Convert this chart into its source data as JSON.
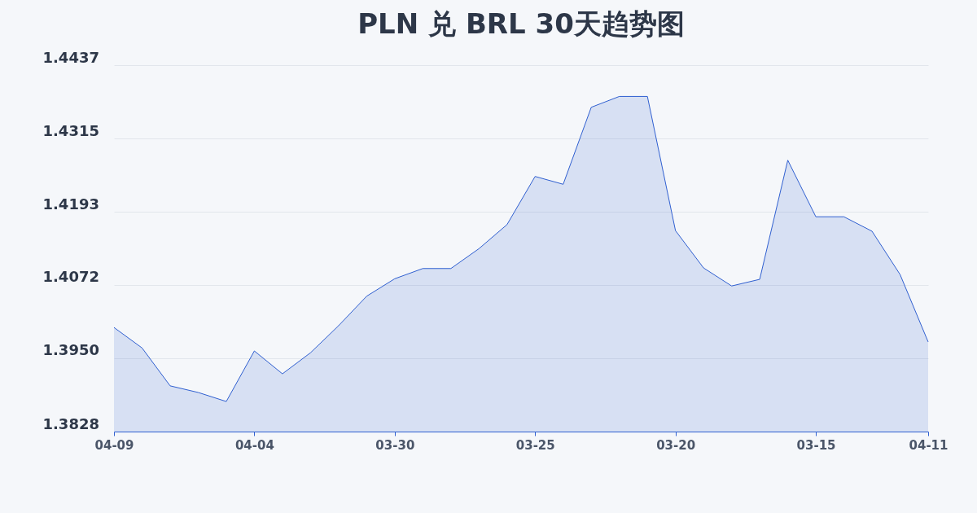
{
  "chart_data": {
    "type": "area",
    "title": "PLN 兑 BRL 30天趋势图",
    "categories": [
      "04-09",
      null,
      null,
      null,
      null,
      "04-04",
      null,
      null,
      null,
      null,
      "03-30",
      null,
      null,
      null,
      null,
      "03-25",
      null,
      null,
      null,
      null,
      "03-20",
      null,
      null,
      null,
      null,
      "03-15",
      null,
      null,
      null,
      "04-11"
    ],
    "series": [
      {
        "color": "#2f5fd0",
        "values": [
          1.4001,
          1.3967,
          1.3904,
          1.3893,
          1.3878,
          1.3962,
          1.3924,
          1.3959,
          1.4004,
          1.4053,
          1.4082,
          1.4099,
          1.4099,
          1.4132,
          1.4172,
          1.4252,
          1.4239,
          1.4367,
          1.4385,
          1.4385,
          1.4162,
          1.41,
          1.407,
          1.4081,
          1.4279,
          1.4185,
          1.4185,
          1.4161,
          1.4089,
          1.3977
        ]
      }
    ],
    "ylim": [
      1.3828,
      1.4437
    ],
    "yticks": [
      1.3828,
      {
        "value": 1.395,
        "label": "1.3950"
      },
      1.4072,
      1.4193,
      1.4315,
      1.4437
    ],
    "grid": "y"
  }
}
